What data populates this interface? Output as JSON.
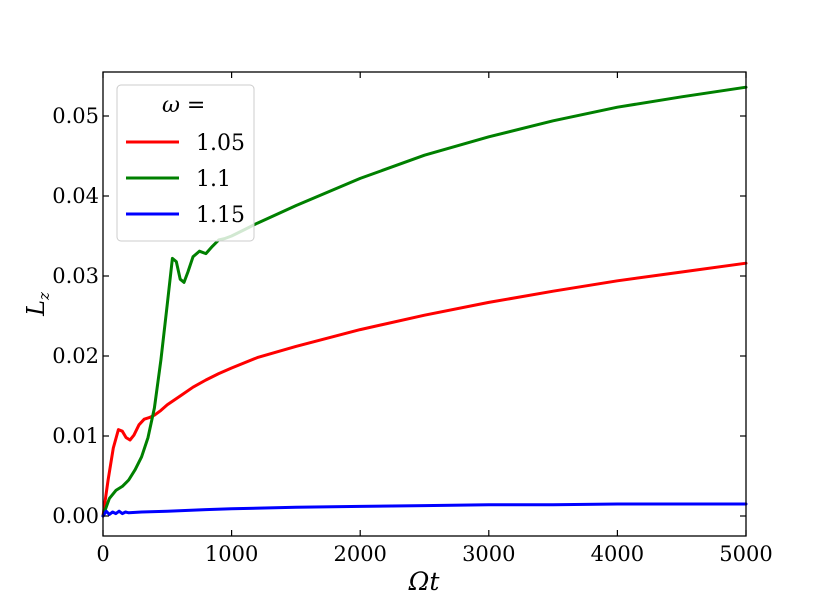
{
  "chart_data": {
    "type": "line",
    "xlabel": "Ωt",
    "ylabel": "L",
    "ylabel_sub": "z",
    "xlim": [
      0,
      5000
    ],
    "ylim": [
      -0.0025,
      0.0555
    ],
    "xticks": [
      0,
      1000,
      2000,
      3000,
      4000,
      5000
    ],
    "xtick_labels": [
      "0",
      "1000",
      "2000",
      "3000",
      "4000",
      "5000"
    ],
    "yticks": [
      0.0,
      0.01,
      0.02,
      0.03,
      0.04,
      0.05
    ],
    "ytick_labels": [
      "0.00",
      "0.01",
      "0.02",
      "0.03",
      "0.04",
      "0.05"
    ],
    "grid": false,
    "legend_title": "ω =",
    "legend_placement": "top-left",
    "series": [
      {
        "name": "1.05",
        "color": "#ff0000",
        "x": [
          0,
          40,
          80,
          120,
          150,
          180,
          210,
          240,
          280,
          320,
          360,
          400,
          450,
          500,
          600,
          700,
          800,
          900,
          1000,
          1200,
          1500,
          2000,
          2500,
          3000,
          3500,
          4000,
          4500,
          5000
        ],
        "y": [
          0.0,
          0.0045,
          0.0085,
          0.0108,
          0.0106,
          0.0098,
          0.0095,
          0.0101,
          0.0114,
          0.0121,
          0.0123,
          0.0126,
          0.0132,
          0.0139,
          0.015,
          0.0161,
          0.017,
          0.0178,
          0.0185,
          0.0198,
          0.0212,
          0.0233,
          0.0251,
          0.0267,
          0.0281,
          0.0294,
          0.0305,
          0.0316
        ]
      },
      {
        "name": "1.1",
        "color": "#008000",
        "x": [
          0,
          50,
          100,
          150,
          200,
          250,
          300,
          350,
          400,
          450,
          500,
          540,
          570,
          600,
          630,
          660,
          700,
          750,
          800,
          850,
          900,
          950,
          1000,
          1100,
          1200,
          1500,
          2000,
          2500,
          3000,
          3500,
          4000,
          4500,
          5000
        ],
        "y": [
          0.0,
          0.0022,
          0.0032,
          0.0037,
          0.0045,
          0.0058,
          0.0074,
          0.0098,
          0.0135,
          0.0195,
          0.0265,
          0.0322,
          0.0318,
          0.0296,
          0.0292,
          0.0305,
          0.0324,
          0.0331,
          0.0328,
          0.0337,
          0.0345,
          0.0347,
          0.035,
          0.0358,
          0.0366,
          0.0388,
          0.0422,
          0.0451,
          0.0474,
          0.0494,
          0.0511,
          0.0524,
          0.0536
        ]
      },
      {
        "name": "1.15",
        "color": "#0000ff",
        "x": [
          0,
          25,
          50,
          75,
          100,
          125,
          150,
          175,
          200,
          300,
          500,
          800,
          1000,
          1500,
          2000,
          2500,
          3000,
          3500,
          4000,
          4500,
          5000
        ],
        "y": [
          0.0,
          0.0006,
          0.0002,
          0.0005,
          0.0003,
          0.0006,
          0.0003,
          0.0005,
          0.0004,
          0.0005,
          0.0006,
          0.0008,
          0.0009,
          0.0011,
          0.0012,
          0.0013,
          0.0014,
          0.0014,
          0.0015,
          0.0015,
          0.0015
        ]
      }
    ]
  }
}
